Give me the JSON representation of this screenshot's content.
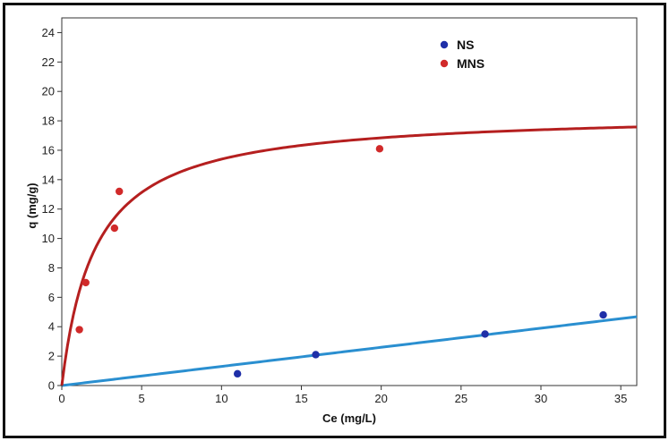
{
  "chart_data": {
    "type": "scatter",
    "xlabel": "Ce (mg/L)",
    "ylabel": "q (mg/g)",
    "xlim": [
      0,
      36
    ],
    "ylim": [
      0,
      25
    ],
    "x_ticks": [
      0,
      5,
      10,
      15,
      20,
      25,
      30,
      35
    ],
    "y_ticks": [
      0,
      2,
      4,
      6,
      8,
      10,
      12,
      14,
      16,
      18,
      20,
      22,
      24
    ],
    "grid": false,
    "legend_position": "top-right",
    "series": [
      {
        "name": "NS",
        "marker_color": "#1f2fa8",
        "points": [
          {
            "x": 11.0,
            "y": 0.8
          },
          {
            "x": 15.9,
            "y": 2.1
          },
          {
            "x": 26.5,
            "y": 3.5
          },
          {
            "x": 33.9,
            "y": 4.8
          }
        ],
        "fit": {
          "model": "linear",
          "slope": 0.13,
          "color": "#2a8fd0"
        }
      },
      {
        "name": "MNS",
        "marker_color": "#d12a2a",
        "points": [
          {
            "x": 1.1,
            "y": 3.8
          },
          {
            "x": 1.5,
            "y": 7.0
          },
          {
            "x": 3.3,
            "y": 10.7
          },
          {
            "x": 3.6,
            "y": 13.2
          },
          {
            "x": 19.9,
            "y": 16.1
          }
        ],
        "fit": {
          "model": "langmuir",
          "qmax": 18.6,
          "K": 0.48,
          "color": "#b51f1f"
        }
      }
    ]
  }
}
